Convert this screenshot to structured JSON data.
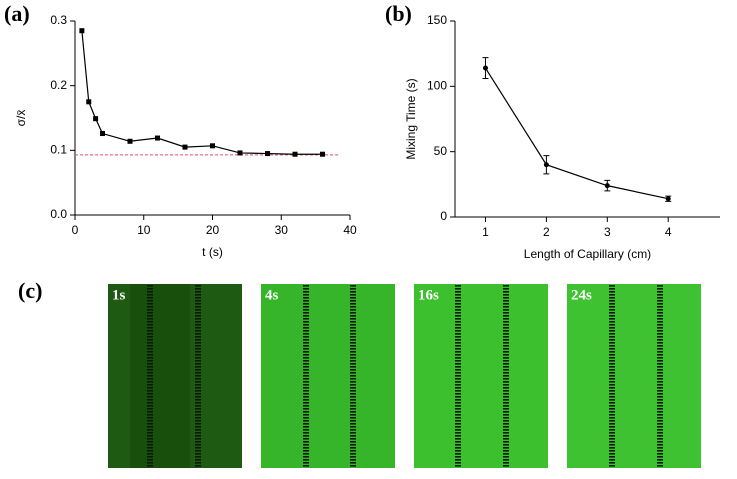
{
  "panel_labels": [
    "(a)",
    "(b)",
    "(c)"
  ],
  "chart_data": [
    {
      "type": "line",
      "xlabel": "t (s)",
      "ylabel": "σ/x̄",
      "marker": "square",
      "color": "#000000",
      "x": [
        1,
        2,
        3,
        4,
        8,
        12,
        16,
        20,
        24,
        28,
        32,
        36
      ],
      "values": [
        0.285,
        0.175,
        0.149,
        0.126,
        0.114,
        0.119,
        0.105,
        0.107,
        0.096,
        0.095,
        0.094,
        0.094
      ],
      "xlim": [
        0,
        40
      ],
      "xticks": [
        0,
        10,
        20,
        30,
        40
      ],
      "ylim": [
        0,
        0.3
      ],
      "yticks": [
        {
          "value": 0,
          "label": "0.0"
        },
        0.1,
        0.2,
        0.3
      ],
      "reference_line": {
        "value": 0.093,
        "color": "#e05060"
      }
    },
    {
      "type": "line",
      "xlabel": "Length of Capillary (cm)",
      "ylabel": "Mixing Time (s)",
      "marker": "circle",
      "color": "#000000",
      "x": [
        1,
        2,
        3,
        4
      ],
      "values": [
        114,
        40,
        24,
        14
      ],
      "errors": [
        8,
        7,
        4,
        2
      ],
      "xlim": [
        0.5,
        4.85
      ],
      "xticks": [
        1,
        2,
        3,
        4
      ],
      "ylim": [
        0,
        150
      ],
      "yticks": [
        0,
        50,
        100,
        150
      ]
    }
  ],
  "images": {
    "labels": [
      "1s",
      "4s",
      "16s",
      "24s"
    ]
  }
}
